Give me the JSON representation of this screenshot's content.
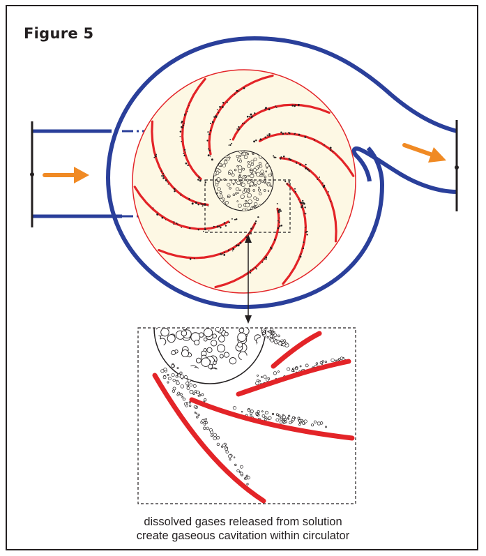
{
  "figure": {
    "title": "Figure 5",
    "caption_line1": "dissolved gases released from solution",
    "caption_line2": "create gaseous cavitation within circulator"
  },
  "colors": {
    "volute": "#2a3f9a",
    "vane": "#e32428",
    "impeller_fill": "#fdf8e4",
    "arrow": "#f08a24",
    "ink": "#231f20"
  },
  "icons": {
    "inlet_arrow": "right-arrow-icon",
    "outlet_arrow": "right-arrow-icon"
  }
}
